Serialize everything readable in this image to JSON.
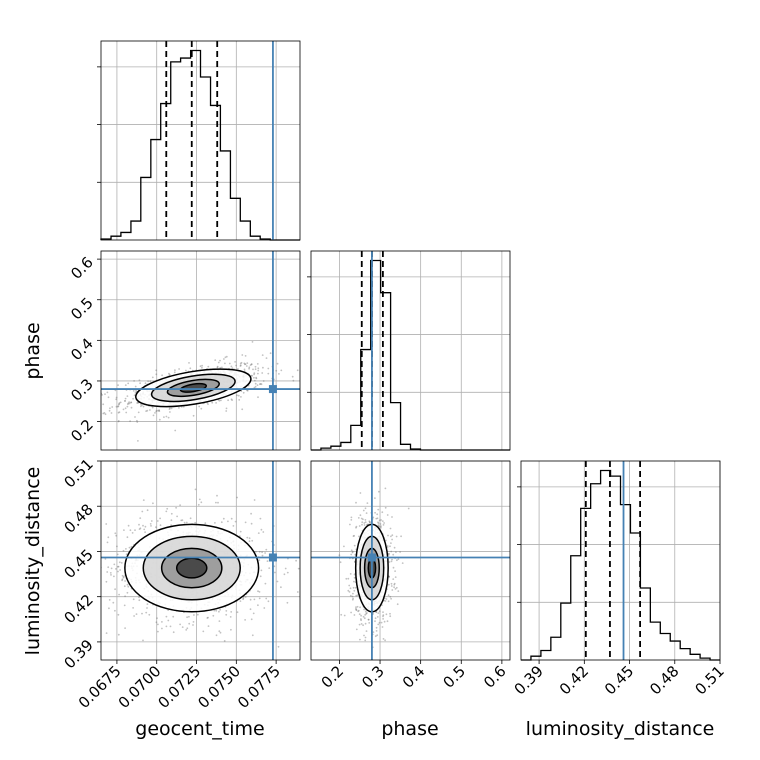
{
  "chart_data": {
    "type": "corner",
    "parameters": [
      "geocent_time",
      "phase",
      "luminosity_distance"
    ],
    "truth_color": "#4682b4",
    "truths": {
      "geocent_time": 0.0773,
      "phase": 0.28,
      "luminosity_distance": 0.446
    },
    "axes": {
      "geocent_time": {
        "label": "geocent_time",
        "range": [
          0.0665,
          0.079
        ],
        "ticks": [
          "0.0675",
          "0.0700",
          "0.0725",
          "0.0750",
          "0.0775"
        ],
        "tick_values": [
          0.0675,
          0.07,
          0.0725,
          0.075,
          0.0775
        ]
      },
      "phase": {
        "label": "phase",
        "range": [
          0.13,
          0.62
        ],
        "ticks": [
          "0.2",
          "0.3",
          "0.4",
          "0.5",
          "0.6"
        ],
        "tick_values": [
          0.2,
          0.3,
          0.4,
          0.5,
          0.6
        ]
      },
      "luminosity_distance": {
        "label": "luminosity_distance",
        "range": [
          0.378,
          0.51
        ],
        "ticks": [
          "0.39",
          "0.42",
          "0.45",
          "0.48",
          "0.51"
        ],
        "tick_values": [
          0.39,
          0.42,
          0.45,
          0.48,
          0.51
        ]
      }
    },
    "marginals": [
      {
        "param": "geocent_time",
        "quantiles": [
          0.0706,
          0.0722,
          0.0738
        ],
        "bin_edges": [
          0.0665,
          0.06713,
          0.06775,
          0.06838,
          0.069,
          0.06963,
          0.07025,
          0.07088,
          0.0715,
          0.07213,
          0.07275,
          0.07338,
          0.074,
          0.07463,
          0.07525,
          0.07588,
          0.0765,
          0.07713,
          0.07775,
          0.07838,
          0.079
        ],
        "heights": [
          0.005,
          0.02,
          0.04,
          0.1,
          0.33,
          0.53,
          0.72,
          0.94,
          0.96,
          1.0,
          0.86,
          0.71,
          0.47,
          0.22,
          0.1,
          0.02,
          0.005,
          0.0,
          0.0,
          0.0
        ]
      },
      {
        "param": "phase",
        "quantiles": [
          0.255,
          0.28,
          0.307
        ],
        "bin_edges": [
          0.13,
          0.1545,
          0.179,
          0.2035,
          0.228,
          0.2525,
          0.277,
          0.3015,
          0.326,
          0.3505,
          0.375,
          0.3995,
          0.424,
          0.4485,
          0.473,
          0.4975,
          0.522,
          0.5465,
          0.571,
          0.5955,
          0.62
        ],
        "heights": [
          0.0,
          0.01,
          0.02,
          0.04,
          0.13,
          0.53,
          1.0,
          0.83,
          0.25,
          0.03,
          0.005,
          0.0,
          0.0,
          0.0,
          0.0,
          0.0,
          0.0,
          0.0,
          0.0,
          0.0
        ]
      },
      {
        "param": "luminosity_distance",
        "quantiles": [
          0.421,
          0.437,
          0.457
        ],
        "bin_edges": [
          0.378,
          0.3846,
          0.3912,
          0.3978,
          0.4044,
          0.411,
          0.4176,
          0.4242,
          0.4308,
          0.4374,
          0.444,
          0.4506,
          0.4572,
          0.4638,
          0.4704,
          0.477,
          0.4836,
          0.4902,
          0.4968,
          0.5034,
          0.51
        ],
        "heights": [
          0.0,
          0.02,
          0.05,
          0.12,
          0.3,
          0.55,
          0.8,
          0.93,
          1.0,
          0.97,
          0.82,
          0.67,
          0.38,
          0.2,
          0.14,
          0.1,
          0.06,
          0.03,
          0.01,
          0.0
        ]
      }
    ],
    "joint": [
      {
        "x": "geocent_time",
        "y": "phase",
        "center": [
          0.0723,
          0.283
        ],
        "sigma": [
          0.0018,
          0.024
        ],
        "correlation": 0.55
      },
      {
        "x": "geocent_time",
        "y": "luminosity_distance",
        "center": [
          0.0722,
          0.439
        ],
        "sigma": [
          0.0021,
          0.0145
        ],
        "correlation": 0.0
      },
      {
        "x": "phase",
        "y": "luminosity_distance",
        "center": [
          0.28,
          0.439
        ],
        "sigma": [
          0.02,
          0.0145
        ],
        "correlation": 0.0
      }
    ],
    "grid": true
  }
}
